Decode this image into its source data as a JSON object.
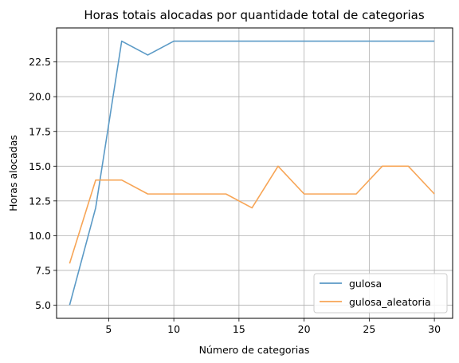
{
  "chart_data": {
    "type": "line",
    "title": "Horas totais alocadas por quantidade total de categorias",
    "xlabel": "Número de categorias",
    "ylabel": "Horas alocadas",
    "xlim": [
      1.0,
      31.4
    ],
    "ylim": [
      4.05,
      24.95
    ],
    "xticks": [
      5,
      10,
      15,
      20,
      25,
      30
    ],
    "yticks": [
      5.0,
      7.5,
      10.0,
      12.5,
      15.0,
      17.5,
      20.0,
      22.5
    ],
    "xtick_labels": [
      "5",
      "10",
      "15",
      "20",
      "25",
      "30"
    ],
    "ytick_labels": [
      "5.0",
      "7.5",
      "10.0",
      "12.5",
      "15.0",
      "17.5",
      "20.0",
      "22.5"
    ],
    "grid": true,
    "legend_position": "bottom-right",
    "x": [
      2,
      4,
      6,
      8,
      10,
      12,
      14,
      16,
      18,
      20,
      22,
      24,
      26,
      28,
      30
    ],
    "series": [
      {
        "name": "gulosa",
        "color": "#5b9ac6",
        "values": [
          5,
          12,
          24,
          23,
          24,
          24,
          24,
          24,
          24,
          24,
          24,
          24,
          24,
          24,
          24
        ]
      },
      {
        "name": "gulosa_aleatoria",
        "color": "#f7a556",
        "values": [
          8,
          14,
          14,
          13,
          13,
          13,
          13,
          12,
          15,
          13,
          13,
          13,
          15,
          15,
          13
        ]
      }
    ]
  }
}
